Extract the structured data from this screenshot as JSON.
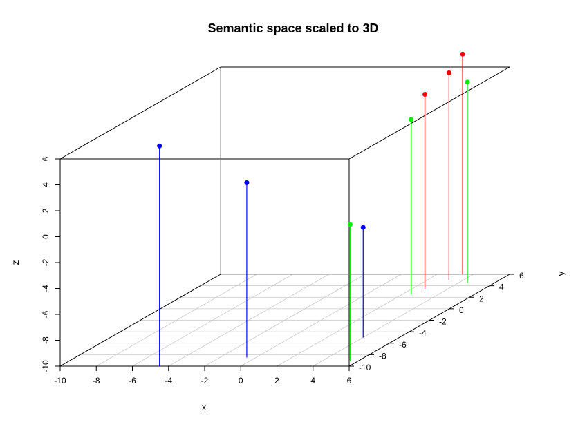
{
  "chart_data": {
    "type": "scatter",
    "title": "Semantic space scaled to 3D",
    "xlabel": "x",
    "ylabel": "y",
    "zlabel": "z",
    "xlim": [
      -10,
      6
    ],
    "ylim": [
      -10,
      6
    ],
    "zlim": [
      -10,
      6
    ],
    "x_ticks": [
      "-10",
      "-8",
      "-6",
      "-4",
      "-2",
      "0",
      "2",
      "4",
      "6"
    ],
    "y_ticks": [
      "-10",
      "-8",
      "-6",
      "-4",
      "-2",
      "0",
      "2",
      "4",
      "6"
    ],
    "z_ticks": [
      "-10",
      "-8",
      "-6",
      "-4",
      "-2",
      "0",
      "2",
      "4",
      "6"
    ],
    "grid": "on (x-y floor)",
    "series": [
      {
        "color": "#0000ff",
        "points": [
          {
            "x": -4.5,
            "y": -10,
            "z": 7.0
          },
          {
            "x": -0.5,
            "y": -8.5,
            "z": 3.5
          },
          {
            "x": 4.0,
            "y": -5.0,
            "z": -1.5
          }
        ]
      },
      {
        "color": "#ff0000",
        "points": [
          {
            "x": 2.7,
            "y": 3.5,
            "z": 5.0
          },
          {
            "x": 3.2,
            "y": 5.0,
            "z": 6.0
          },
          {
            "x": 3.4,
            "y": 6.0,
            "z": 7.0
          }
        ]
      },
      {
        "color": "#00ee00",
        "points": [
          {
            "x": 5.5,
            "y": -9.0,
            "z": 0.5
          },
          {
            "x": 2.5,
            "y": 2.5,
            "z": 3.5
          },
          {
            "x": 4.5,
            "y": 4.5,
            "z": 5.5
          }
        ]
      }
    ]
  }
}
